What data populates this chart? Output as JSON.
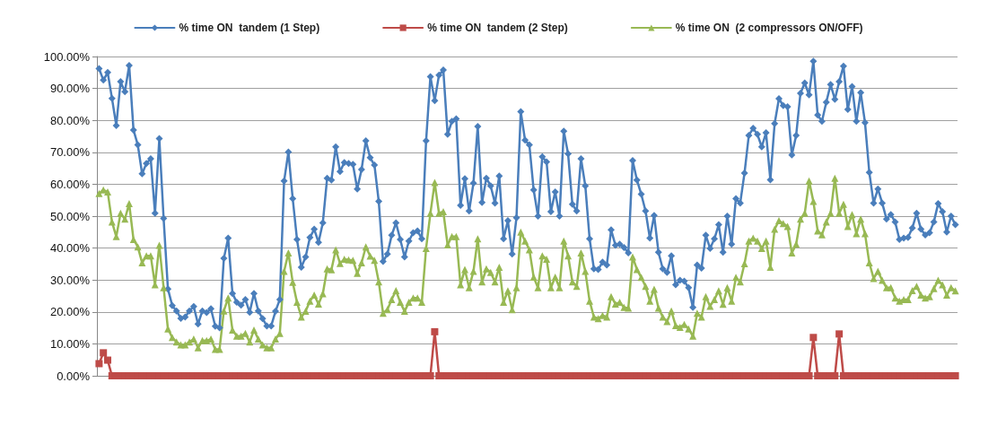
{
  "chart_data": {
    "type": "line",
    "categories": [
      null,
      null,
      null,
      null,
      null,
      null,
      null,
      null,
      null,
      null,
      null,
      null,
      null,
      null,
      null,
      null,
      null,
      null,
      null,
      null,
      null,
      null,
      null,
      null,
      null,
      null,
      null,
      null,
      null,
      null,
      null,
      null,
      null,
      null,
      null,
      null,
      null,
      null,
      null,
      null,
      null,
      null,
      null,
      null,
      null,
      null,
      null,
      null,
      null,
      null,
      null,
      null,
      null,
      null,
      null,
      null,
      null,
      null,
      null,
      null,
      null,
      null,
      null,
      null,
      null,
      null,
      null,
      null,
      null,
      null,
      null,
      null,
      null,
      null,
      null,
      null,
      null,
      null,
      null,
      null,
      null,
      null,
      null,
      null,
      null,
      null,
      null,
      null,
      null,
      null,
      null,
      null,
      null,
      null,
      null,
      null,
      null,
      null,
      null,
      null,
      null,
      null,
      null,
      null,
      null,
      null,
      null,
      null,
      null,
      null,
      null,
      null,
      null,
      null,
      null,
      null,
      null,
      null,
      null,
      null,
      null,
      null,
      null,
      null,
      null,
      null,
      null,
      null,
      null,
      null,
      null,
      null,
      null,
      null,
      null,
      null,
      null,
      null,
      null,
      null,
      null,
      null,
      null,
      null,
      null,
      null,
      null,
      null,
      null,
      null,
      null,
      null,
      null,
      null,
      null,
      null,
      null,
      null,
      null,
      null,
      null,
      null,
      null,
      null,
      null,
      null,
      null,
      null,
      null,
      null,
      null,
      null,
      null,
      null,
      null,
      null,
      null,
      null,
      null,
      null,
      null,
      null,
      null,
      null,
      null,
      null,
      null,
      null,
      null,
      null,
      null,
      null,
      null,
      null,
      null,
      null,
      null,
      null,
      null,
      null
    ],
    "series": [
      {
        "name": "% time ON  tandem (1 Step)",
        "color": "#4a7ebb",
        "marker": "diamond",
        "values": [
          96.2,
          92.6,
          95,
          86.9,
          78.4,
          92.1,
          89,
          97.2,
          77,
          72.3,
          63.3,
          66.5,
          68,
          50.9,
          74.3,
          49.3,
          27.2,
          22,
          20.3,
          18,
          18.4,
          20.3,
          21.7,
          16.2,
          20.3,
          19.8,
          21,
          15.5,
          15,
          36.8,
          43.1,
          25.8,
          23,
          22.1,
          23.9,
          19.9,
          25.8,
          20.3,
          17.9,
          15.6,
          15.6,
          20.2,
          23.9,
          61,
          70.1,
          55.5,
          42.7,
          34,
          37.2,
          43.3,
          45.9,
          41.8,
          47.9,
          61.9,
          61.3,
          71.7,
          64,
          66.8,
          66.5,
          66.2,
          58.5,
          64.6,
          73.6,
          68.3,
          66,
          54.6,
          35.8,
          38.1,
          44,
          47.9,
          42.7,
          37.2,
          42.2,
          44.8,
          45.4,
          42.9,
          73.6,
          93.7,
          86.2,
          94.2,
          95.8,
          75.6,
          79.7,
          80.5,
          53.4,
          61.7,
          51.6,
          60.3,
          78.1,
          54.3,
          61.9,
          59.5,
          54.1,
          62.6,
          42.9,
          48.6,
          38.1,
          49.5,
          82.7,
          73.8,
          72.3,
          58.2,
          50,
          68.6,
          67,
          51.4,
          57.6,
          50,
          76.6,
          69.5,
          53.7,
          51.6,
          68,
          59.5,
          42.9,
          33.5,
          33.3,
          35.6,
          34.7,
          45.7,
          40.9,
          41.2,
          40.2,
          38.5,
          67.4,
          61.3,
          56.9,
          51.6,
          43.1,
          50.2,
          38.7,
          33.5,
          32.4,
          37.6,
          28.5,
          29.9,
          29.6,
          27.6,
          21.4,
          34.7,
          33.7,
          44,
          39.9,
          42.9,
          47.3,
          38.7,
          50,
          41.2,
          55.5,
          54.1,
          63.5,
          75.3,
          77.5,
          75.6,
          71.7,
          76.1,
          61.4,
          79,
          86.8,
          84.6,
          84.3,
          69.2,
          75.3,
          88.5,
          91.7,
          88,
          98.5,
          81.7,
          79.7,
          85.7,
          91.2,
          86.6,
          92.1,
          97,
          83.4,
          90.6,
          79.7,
          88.7,
          79.3,
          63.7,
          54.1,
          58.5,
          54.1,
          49.1,
          50.5,
          48.2,
          42.7,
          43.1,
          43.3,
          46.3,
          50.9,
          45.9,
          44.1,
          44.8,
          48.2,
          53.9,
          51.4,
          45,
          50,
          47.3
        ]
      },
      {
        "name": "% time ON  tandem (2 Step)",
        "color": "#be4b48",
        "marker": "square",
        "values": [
          3.8,
          7.2,
          4.9,
          0,
          0,
          0,
          0,
          0,
          0,
          0,
          0,
          0,
          0,
          0,
          0,
          0,
          0,
          0,
          0,
          0,
          0,
          0,
          0,
          0,
          0,
          0,
          0,
          0,
          0,
          0,
          0,
          0,
          0,
          0,
          0,
          0,
          0,
          0,
          0,
          0,
          0,
          0,
          0,
          0,
          0,
          0,
          0,
          0,
          0,
          0,
          0,
          0,
          0,
          0,
          0,
          0,
          0,
          0,
          0,
          0,
          0,
          0,
          0,
          0,
          0,
          0,
          0,
          0,
          0,
          0,
          0,
          0,
          0,
          0,
          0,
          0,
          0,
          0,
          13.8,
          0,
          0,
          0,
          0,
          0,
          0,
          0,
          0,
          0,
          0,
          0,
          0,
          0,
          0,
          0,
          0,
          0,
          0,
          0,
          0,
          0,
          0,
          0,
          0,
          0,
          0,
          0,
          0,
          0,
          0,
          0,
          0,
          0,
          0,
          0,
          0,
          0,
          0,
          0,
          0,
          0,
          0,
          0,
          0,
          0,
          0,
          0,
          0,
          0,
          0,
          0,
          0,
          0,
          0,
          0,
          0,
          0,
          0,
          0,
          0,
          0,
          0,
          0,
          0,
          0,
          0,
          0,
          0,
          0,
          0,
          0,
          0,
          0,
          0,
          0,
          0,
          0,
          0,
          0,
          0,
          0,
          0,
          0,
          0,
          0,
          0,
          0,
          12,
          0,
          0,
          0,
          0,
          0,
          13.1,
          0,
          0,
          0,
          0,
          0,
          0,
          0,
          0,
          0,
          0,
          0,
          0,
          0,
          0,
          0,
          0,
          0,
          0,
          0,
          0,
          0,
          0,
          0,
          0,
          0,
          0,
          0
        ]
      },
      {
        "name": "% time ON  (2 compressors ON/OFF)",
        "color": "#98b954",
        "marker": "triangle",
        "values": [
          57.1,
          58.2,
          57.6,
          48.2,
          43.6,
          50.9,
          49.1,
          53.9,
          42.7,
          40.4,
          35.4,
          37.6,
          37.6,
          28.5,
          40.9,
          27.6,
          14.7,
          12,
          10.6,
          9.7,
          9.7,
          10.6,
          11.5,
          8.8,
          11,
          11,
          11.5,
          8.3,
          8.3,
          20.3,
          24.4,
          14.3,
          12.4,
          12.4,
          13.3,
          10.6,
          14.3,
          11.5,
          9.7,
          8.8,
          8.8,
          11.5,
          13.3,
          32.7,
          38.5,
          29.3,
          23,
          18.4,
          20.2,
          23.4,
          25.3,
          22.5,
          25.7,
          33.5,
          33.2,
          39.5,
          35.2,
          36.5,
          36.3,
          36.2,
          32.1,
          35.4,
          40.4,
          37.5,
          36.2,
          29.4,
          19.6,
          20.7,
          23.9,
          26.7,
          23,
          20.2,
          23,
          24.4,
          24.4,
          23,
          39.9,
          50.9,
          60.5,
          50.9,
          51.4,
          41,
          43.6,
          43.6,
          28.5,
          33.3,
          27.6,
          32.7,
          42.9,
          29.4,
          33.5,
          32.4,
          29.4,
          34,
          23,
          26.6,
          20.7,
          27.6,
          45,
          42.2,
          39.5,
          30.9,
          27.6,
          37.6,
          36.5,
          27.6,
          30.9,
          27.6,
          42.2,
          37.6,
          29.4,
          28,
          38.5,
          32.7,
          23.4,
          18.4,
          17.9,
          18.9,
          18.4,
          24.8,
          22.5,
          23,
          21.4,
          21.2,
          37.2,
          33.3,
          30.8,
          28,
          23.4,
          27.1,
          21.2,
          18.4,
          17,
          20.3,
          15.7,
          15.2,
          16.1,
          14.7,
          12.4,
          19.6,
          18.4,
          24.8,
          21.8,
          23.9,
          26.6,
          22.4,
          27.6,
          23.4,
          30.8,
          29.4,
          35.1,
          42.2,
          43.1,
          42.2,
          39.9,
          42.2,
          34,
          45.9,
          48.6,
          47.7,
          46.8,
          38.5,
          41.2,
          49.1,
          50.9,
          61,
          54.6,
          45.4,
          44.2,
          48.2,
          50.9,
          61.9,
          50.9,
          53.7,
          46.8,
          50.5,
          44.5,
          49.1,
          44.5,
          35.4,
          30.5,
          32.7,
          29.9,
          27.6,
          27.6,
          24.4,
          23.4,
          23.9,
          23.9,
          26.7,
          28,
          25.3,
          24.4,
          24.8,
          27.3,
          29.9,
          28.5,
          25.3,
          27.6,
          26.6
        ]
      }
    ],
    "ylim": [
      0,
      100
    ],
    "yticks": [
      {
        "value": 0,
        "label": "0.00%"
      },
      {
        "value": 10,
        "label": "10.00%"
      },
      {
        "value": 20,
        "label": "20.00%"
      },
      {
        "value": 30,
        "label": "30.00%"
      },
      {
        "value": 40,
        "label": "40.00%"
      },
      {
        "value": 50,
        "label": "50.00%"
      },
      {
        "value": 60,
        "label": "60.00%"
      },
      {
        "value": 70,
        "label": "70.00%"
      },
      {
        "value": 80,
        "label": "80.00%"
      },
      {
        "value": 90,
        "label": "90.00%"
      },
      {
        "value": 100,
        "label": "100.00%"
      }
    ],
    "grid": "y",
    "legend": "top",
    "line_style": "solid"
  }
}
